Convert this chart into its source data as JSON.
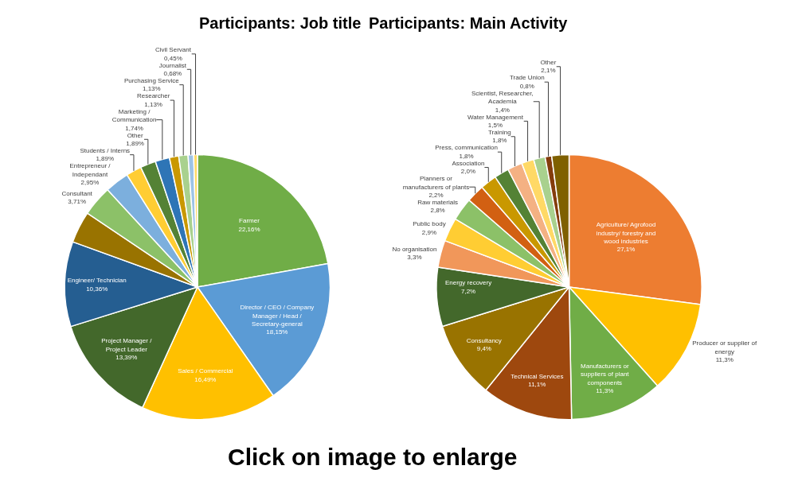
{
  "chart_data": [
    {
      "type": "pie",
      "title": "Participants: Job title",
      "categories": [
        "Farmer",
        "Director / CEO / Company Manager / Head / Secretary-general",
        "Sales / Commercial",
        "Project Manager / Project Leader",
        "Engineer/ Technician",
        null,
        "Consultant",
        "Entrepreneur / Independant",
        "Students / Interns",
        "Other",
        "Marketing / Communication",
        "Researcher",
        "Purchasing Service",
        "Journalist",
        "Civil Servant"
      ],
      "values": [
        22.16,
        18.15,
        16.49,
        13.39,
        10.36,
        3.88,
        3.71,
        2.95,
        1.89,
        1.89,
        1.74,
        1.13,
        1.13,
        0.68,
        0.45
      ],
      "value_labels": [
        "22,16%",
        "18,15%",
        "16,49%",
        "13,39%",
        "10,36%",
        null,
        "3,71%",
        "2,95%",
        "1,89%",
        "1,89%",
        "1,74%",
        "1,13%",
        "1,13%",
        "0,68%",
        "0,45%"
      ],
      "colors": [
        "#70ad47",
        "#5b9bd5",
        "#ffc000",
        "#43682b",
        "#255e91",
        "#997300",
        "#8cc168",
        "#7cafdd",
        "#ffcd33",
        "#548235",
        "#2e75b6",
        "#c99800",
        "#a9d18e",
        "#9dc3e6",
        "#ffd966"
      ],
      "legend": false
    },
    {
      "type": "pie",
      "title": "Participants: Main Activity",
      "categories": [
        "Agriculture/ Agrofood industry/ forestry and wood industries",
        "Producer or supplier of energy",
        "Manufacturers or suppliers of plant components",
        "Technical Services",
        "Consultancy",
        "Energy recovery",
        "No organisation",
        "Public body",
        "Raw materials",
        "Planners or manufacturers of plants",
        "Association",
        "Press, communication",
        "Training",
        "Water Management",
        "Scientist, Researcher, Academia",
        "Trade Union",
        "Other"
      ],
      "values": [
        27.1,
        11.3,
        11.3,
        11.1,
        9.4,
        7.2,
        3.3,
        2.9,
        2.8,
        2.2,
        2.0,
        1.8,
        1.8,
        1.5,
        1.4,
        0.8,
        2.1
      ],
      "value_labels": [
        "27,1%",
        "11,3%",
        "11,3%",
        "11,1%",
        "9,4%",
        "7,2%",
        "3,3%",
        "2,9%",
        "2,8%",
        "2,2%",
        "2,0%",
        "1,8%",
        "1,8%",
        "1,5%",
        "1,4%",
        "0,8%",
        "2,1%"
      ],
      "colors": [
        "#ed7d31",
        "#ffc000",
        "#70ad47",
        "#9e480e",
        "#997300",
        "#43682b",
        "#f1975a",
        "#ffcd33",
        "#8cc168",
        "#d26012",
        "#c99800",
        "#548235",
        "#f4b183",
        "#ffd966",
        "#a9d18e",
        "#843c0c",
        "#7f6000"
      ],
      "legend": false,
      "annotations": [
        "Click on image to enlarge"
      ]
    }
  ]
}
